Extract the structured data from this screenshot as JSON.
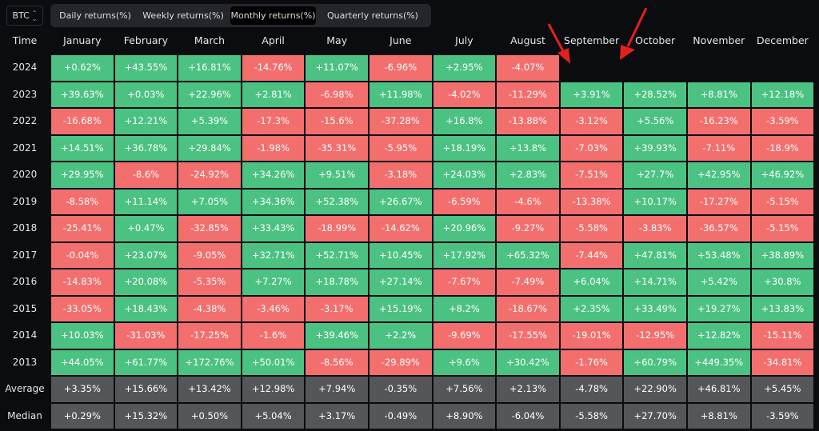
{
  "asset_selector": {
    "value": "BTC",
    "icon": "updown-chevron-icon"
  },
  "tabs": [
    {
      "label": "Daily returns(%)",
      "active": false
    },
    {
      "label": "Weekly returns(%)",
      "active": false
    },
    {
      "label": "Monthly returns(%)",
      "active": true
    },
    {
      "label": "Quarterly returns(%)",
      "active": false
    }
  ],
  "table": {
    "time_header": "Time",
    "months": [
      "January",
      "February",
      "March",
      "April",
      "May",
      "June",
      "July",
      "August",
      "September",
      "October",
      "November",
      "December"
    ],
    "rows": [
      {
        "label": "2024",
        "values": [
          "+0.62%",
          "+43.55%",
          "+16.81%",
          "-14.76%",
          "+11.07%",
          "-6.96%",
          "+2.95%",
          "-4.07%"
        ]
      },
      {
        "label": "2023",
        "values": [
          "+39.63%",
          "+0.03%",
          "+22.96%",
          "+2.81%",
          "-6.98%",
          "+11.98%",
          "-4.02%",
          "-11.29%",
          "+3.91%",
          "+28.52%",
          "+8.81%",
          "+12.18%"
        ]
      },
      {
        "label": "2022",
        "values": [
          "-16.68%",
          "+12.21%",
          "+5.39%",
          "-17.3%",
          "-15.6%",
          "-37.28%",
          "+16.8%",
          "-13.88%",
          "-3.12%",
          "+5.56%",
          "-16.23%",
          "-3.59%"
        ]
      },
      {
        "label": "2021",
        "values": [
          "+14.51%",
          "+36.78%",
          "+29.84%",
          "-1.98%",
          "-35.31%",
          "-5.95%",
          "+18.19%",
          "+13.8%",
          "-7.03%",
          "+39.93%",
          "-7.11%",
          "-18.9%"
        ]
      },
      {
        "label": "2020",
        "values": [
          "+29.95%",
          "-8.6%",
          "-24.92%",
          "+34.26%",
          "+9.51%",
          "-3.18%",
          "+24.03%",
          "+2.83%",
          "-7.51%",
          "+27.7%",
          "+42.95%",
          "+46.92%"
        ]
      },
      {
        "label": "2019",
        "values": [
          "-8.58%",
          "+11.14%",
          "+7.05%",
          "+34.36%",
          "+52.38%",
          "+26.67%",
          "-6.59%",
          "-4.6%",
          "-13.38%",
          "+10.17%",
          "-17.27%",
          "-5.15%"
        ]
      },
      {
        "label": "2018",
        "values": [
          "-25.41%",
          "+0.47%",
          "-32.85%",
          "+33.43%",
          "-18.99%",
          "-14.62%",
          "+20.96%",
          "-9.27%",
          "-5.58%",
          "-3.83%",
          "-36.57%",
          "-5.15%"
        ]
      },
      {
        "label": "2017",
        "values": [
          "-0.04%",
          "+23.07%",
          "-9.05%",
          "+32.71%",
          "+52.71%",
          "+10.45%",
          "+17.92%",
          "+65.32%",
          "-7.44%",
          "+47.81%",
          "+53.48%",
          "+38.89%"
        ]
      },
      {
        "label": "2016",
        "values": [
          "-14.83%",
          "+20.08%",
          "-5.35%",
          "+7.27%",
          "+18.78%",
          "+27.14%",
          "-7.67%",
          "-7.49%",
          "+6.04%",
          "+14.71%",
          "+5.42%",
          "+30.8%"
        ]
      },
      {
        "label": "2015",
        "values": [
          "-33.05%",
          "+18.43%",
          "-4.38%",
          "-3.46%",
          "-3.17%",
          "+15.19%",
          "+8.2%",
          "-18.67%",
          "+2.35%",
          "+33.49%",
          "+19.27%",
          "+13.83%"
        ]
      },
      {
        "label": "2014",
        "values": [
          "+10.03%",
          "-31.03%",
          "-17.25%",
          "-1.6%",
          "+39.46%",
          "+2.2%",
          "-9.69%",
          "-17.55%",
          "-19.01%",
          "-12.95%",
          "+12.82%",
          "-15.11%"
        ]
      },
      {
        "label": "2013",
        "values": [
          "+44.05%",
          "+61.77%",
          "+172.76%",
          "+50.01%",
          "-8.56%",
          "-29.89%",
          "+9.6%",
          "+30.42%",
          "-1.76%",
          "+60.79%",
          "+449.35%",
          "-34.81%"
        ]
      }
    ],
    "stats": [
      {
        "label": "Average",
        "values": [
          "+3.35%",
          "+15.66%",
          "+13.42%",
          "+12.98%",
          "+7.94%",
          "-0.35%",
          "+7.56%",
          "+2.13%",
          "-4.78%",
          "+22.90%",
          "+46.81%",
          "+5.45%"
        ]
      },
      {
        "label": "Median",
        "values": [
          "+0.29%",
          "+15.32%",
          "+0.50%",
          "+5.04%",
          "+3.17%",
          "-0.49%",
          "+8.90%",
          "-6.04%",
          "-5.58%",
          "+27.70%",
          "+8.81%",
          "-3.59%"
        ]
      }
    ]
  },
  "colors": {
    "positive": "#4cc282",
    "negative": "#f36f6e",
    "stat": "#54565a",
    "arrow": "#e3201b"
  }
}
